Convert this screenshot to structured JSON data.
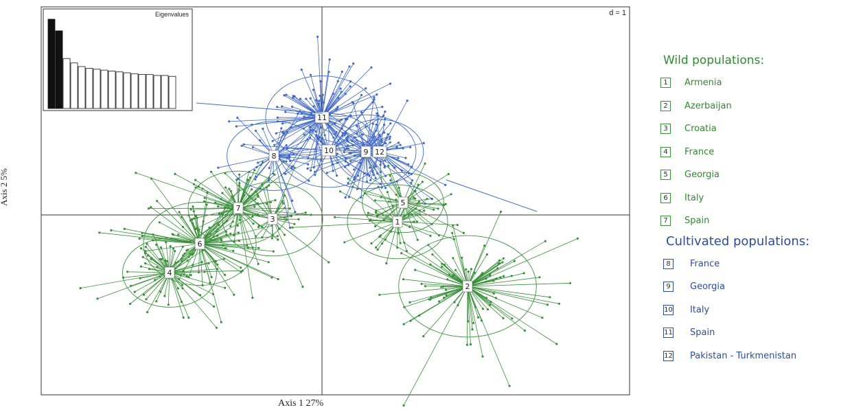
{
  "chart_data": {
    "type": "scatter",
    "title": "",
    "xlabel": "Axis 1 27%",
    "ylabel": "Axis 2 5%",
    "scale_label": "d = 1",
    "inset": {
      "title": "Eigenvalues",
      "values": [
        1.0,
        0.87,
        0.56,
        0.51,
        0.47,
        0.45,
        0.44,
        0.43,
        0.42,
        0.41,
        0.4,
        0.39,
        0.38,
        0.38,
        0.37,
        0.37,
        0.36
      ],
      "highlighted": 2
    },
    "grid": false,
    "legend_position": "right",
    "colors": {
      "wild": "#3a8f3a",
      "cultivated": "#3f68c7"
    },
    "groups": [
      {
        "id": "1",
        "kind": "wild",
        "name": "Armenia",
        "cx": 0.55,
        "cy": -0.05,
        "n": 40,
        "spread": 1.6
      },
      {
        "id": "2",
        "kind": "wild",
        "name": "Azerbaijan",
        "cx": 1.06,
        "cy": -0.52,
        "n": 95,
        "spread": 2.2
      },
      {
        "id": "3",
        "kind": "wild",
        "name": "Croatia",
        "cx": -0.36,
        "cy": -0.03,
        "n": 30,
        "spread": 1.6
      },
      {
        "id": "4",
        "kind": "wild",
        "name": "France",
        "cx": -1.11,
        "cy": -0.42,
        "n": 70,
        "spread": 1.5
      },
      {
        "id": "5",
        "kind": "wild",
        "name": "Georgia",
        "cx": 0.59,
        "cy": 0.09,
        "n": 40,
        "spread": 1.3
      },
      {
        "id": "6",
        "kind": "wild",
        "name": "Italy",
        "cx": -0.89,
        "cy": -0.21,
        "n": 90,
        "spread": 1.8
      },
      {
        "id": "7",
        "kind": "wild",
        "name": "Spain",
        "cx": -0.61,
        "cy": 0.05,
        "n": 70,
        "spread": 1.6
      },
      {
        "id": "8",
        "kind": "cultivated",
        "name": "France",
        "cx": -0.35,
        "cy": 0.43,
        "n": 40,
        "spread": 1.5
      },
      {
        "id": "9",
        "kind": "cultivated",
        "name": "Georgia",
        "cx": 0.32,
        "cy": 0.46,
        "n": 60,
        "spread": 1.6
      },
      {
        "id": "10",
        "kind": "cultivated",
        "name": "Italy",
        "cx": 0.05,
        "cy": 0.47,
        "n": 40,
        "spread": 1.6
      },
      {
        "id": "11",
        "kind": "cultivated",
        "name": "Spain",
        "cx": 0.0,
        "cy": 0.71,
        "n": 90,
        "spread": 1.8
      },
      {
        "id": "12",
        "kind": "cultivated",
        "name": "Pakistan - Turkmenistan",
        "cx": 0.42,
        "cy": 0.46,
        "n": 40,
        "spread": 1.4
      }
    ]
  },
  "legend": {
    "wild_title": "Wild populations:",
    "cultivated_title": "Cultivated populations:"
  }
}
